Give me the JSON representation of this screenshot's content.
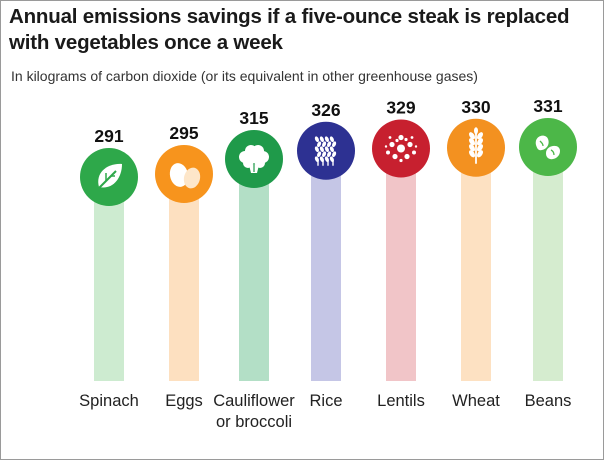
{
  "title": "Annual emissions savings if a five-ounce steak is replaced with vegetables once a week",
  "subtitle": "In kilograms of carbon dioxide (or its equivalent in other greenhouse gases)",
  "chart_data": {
    "type": "bar",
    "categories": [
      [
        "Spinach"
      ],
      [
        "Eggs"
      ],
      [
        "Cauliflower",
        "or broccoli"
      ],
      [
        "Rice"
      ],
      [
        "Lentils"
      ],
      [
        "Wheat"
      ],
      [
        "Beans"
      ]
    ],
    "values": [
      291,
      295,
      315,
      326,
      329,
      330,
      331
    ],
    "value_labels": [
      "291",
      "295",
      "315",
      "326",
      "329",
      "330",
      "331"
    ],
    "icons": [
      "leaf-icon",
      "eggs-icon",
      "cauliflower-icon",
      "rice-icon",
      "lentils-icon",
      "wheat-icon",
      "beans-icon"
    ],
    "colors": [
      "#2ea84a",
      "#f7941d",
      "#1f9a4a",
      "#2d3192",
      "#c7202f",
      "#f39120",
      "#4cb748"
    ],
    "bar_colors": [
      "#cdebd0",
      "#fde0c0",
      "#b3dfc6",
      "#c5c6e6",
      "#f1c5c8",
      "#fde1c2",
      "#d5eccf"
    ],
    "title": "",
    "xlabel": "",
    "ylabel": "",
    "grid": false,
    "legend": "none"
  }
}
